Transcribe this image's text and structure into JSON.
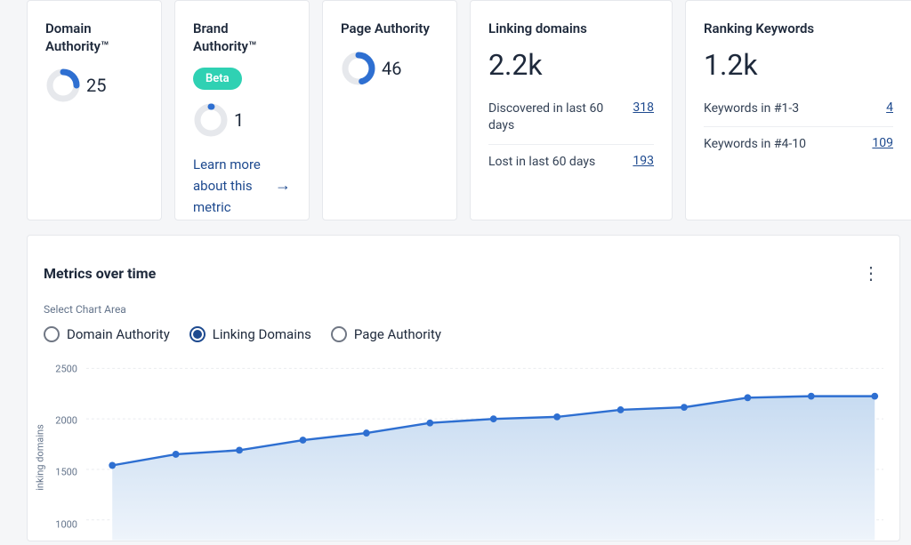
{
  "cards": {
    "domain_authority": {
      "title": "Domain Authority™",
      "value": "25",
      "pct": 25,
      "ring_color": "#2e6fd1",
      "track_color": "#e6e8ec"
    },
    "brand_authority": {
      "title": "Brand Authority™",
      "badge": "Beta",
      "value": "1",
      "pct": 1,
      "ring_color": "#2e6fd1",
      "track_color": "#e6e8ec",
      "learn": "Learn more about this metric"
    },
    "page_authority": {
      "title": "Page Authority",
      "value": "46",
      "pct": 46,
      "ring_color": "#2e6fd1",
      "track_color": "#e6e8ec"
    },
    "linking_domains": {
      "title": "Linking domains",
      "value": "2.2k",
      "rows": [
        {
          "label": "Discovered in last 60 days",
          "value": "318"
        },
        {
          "label": "Lost in last 60 days",
          "value": "193"
        }
      ]
    },
    "ranking_keywords": {
      "title": "Ranking Keywords",
      "value": "1.2k",
      "rows": [
        {
          "label": "Keywords in #1-3",
          "value": "4"
        },
        {
          "label": "Keywords in #4-10",
          "value": "109"
        }
      ]
    }
  },
  "panel": {
    "title": "Metrics over time",
    "select_label": "Select Chart Area",
    "options": [
      {
        "label": "Domain Authority",
        "selected": false
      },
      {
        "label": "Linking Domains",
        "selected": true
      },
      {
        "label": "Page Authority",
        "selected": false
      }
    ],
    "chart": {
      "type": "area",
      "y_label": "inking domains",
      "ylim": [
        800,
        2600
      ],
      "yticks": [
        1000,
        1500,
        2000,
        2500
      ],
      "values": [
        1540,
        1650,
        1690,
        1790,
        1860,
        1960,
        2000,
        2020,
        2090,
        2115,
        2210,
        2225,
        2225
      ],
      "line_color": "#2e6fd1",
      "line_width": 2.5,
      "marker_color": "#2e6fd1",
      "marker_radius": 4,
      "fill_top": "#c7dbf1",
      "fill_bottom": "#eef4fb",
      "grid_color": "#e9ebef",
      "grid_dash": "3 3",
      "background": "#ffffff",
      "tick_fontsize": 11,
      "tick_color": "#64748b"
    }
  },
  "colors": {
    "primary": "#2e6fd1",
    "link": "#1e4a8f",
    "teal": "#2fd1b3",
    "text": "#1e293b",
    "muted": "#64748b",
    "border": "#e6e8ec",
    "page_bg": "#f5f6f8"
  }
}
